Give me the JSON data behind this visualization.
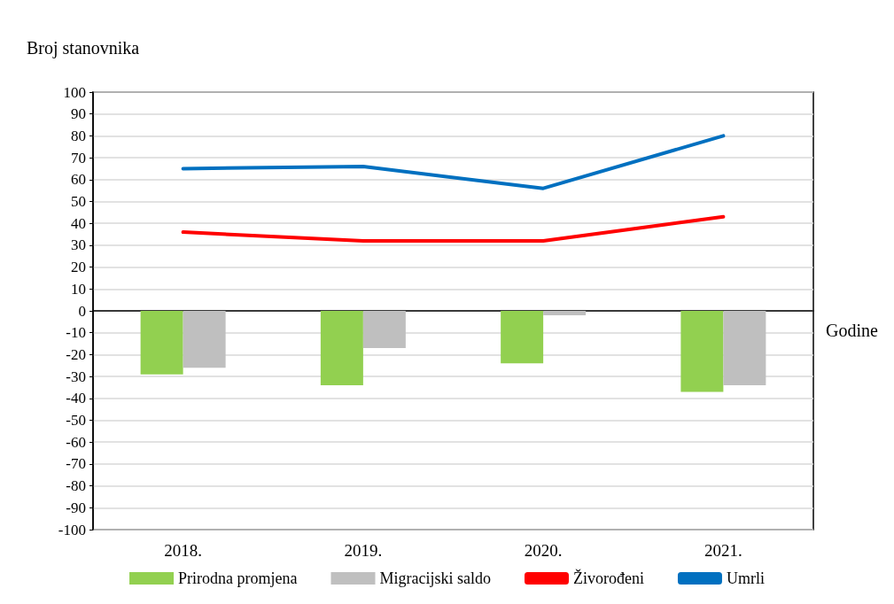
{
  "chart_data": {
    "type": "bar",
    "xlabel": "Godine",
    "ylabel": "Broj stanovnika",
    "categories": [
      "2018.",
      "2019.",
      "2020.",
      "2021."
    ],
    "series": [
      {
        "name": "Prirodna promjena",
        "color": "#92d050",
        "values": [
          -29,
          -34,
          -24,
          -37
        ]
      },
      {
        "name": "Migracijski saldo",
        "color": "#bfbfbf",
        "values": [
          -26,
          -17,
          -2,
          -34
        ]
      },
      {
        "name": "Živorođeni",
        "type": "line",
        "color": "#ff0000",
        "values": [
          36,
          32,
          32,
          43
        ]
      },
      {
        "name": "Umrli",
        "type": "line",
        "color": "#0070c0",
        "values": [
          65,
          66,
          56,
          80
        ]
      }
    ],
    "ylim": [
      -100,
      100
    ],
    "yticks": [
      -100,
      -90,
      -80,
      -70,
      -60,
      -50,
      -40,
      -30,
      -20,
      -10,
      0,
      10,
      20,
      30,
      40,
      50,
      60,
      70,
      80,
      90,
      100
    ],
    "grid": "y",
    "legend": "bottom",
    "marker": "none"
  }
}
